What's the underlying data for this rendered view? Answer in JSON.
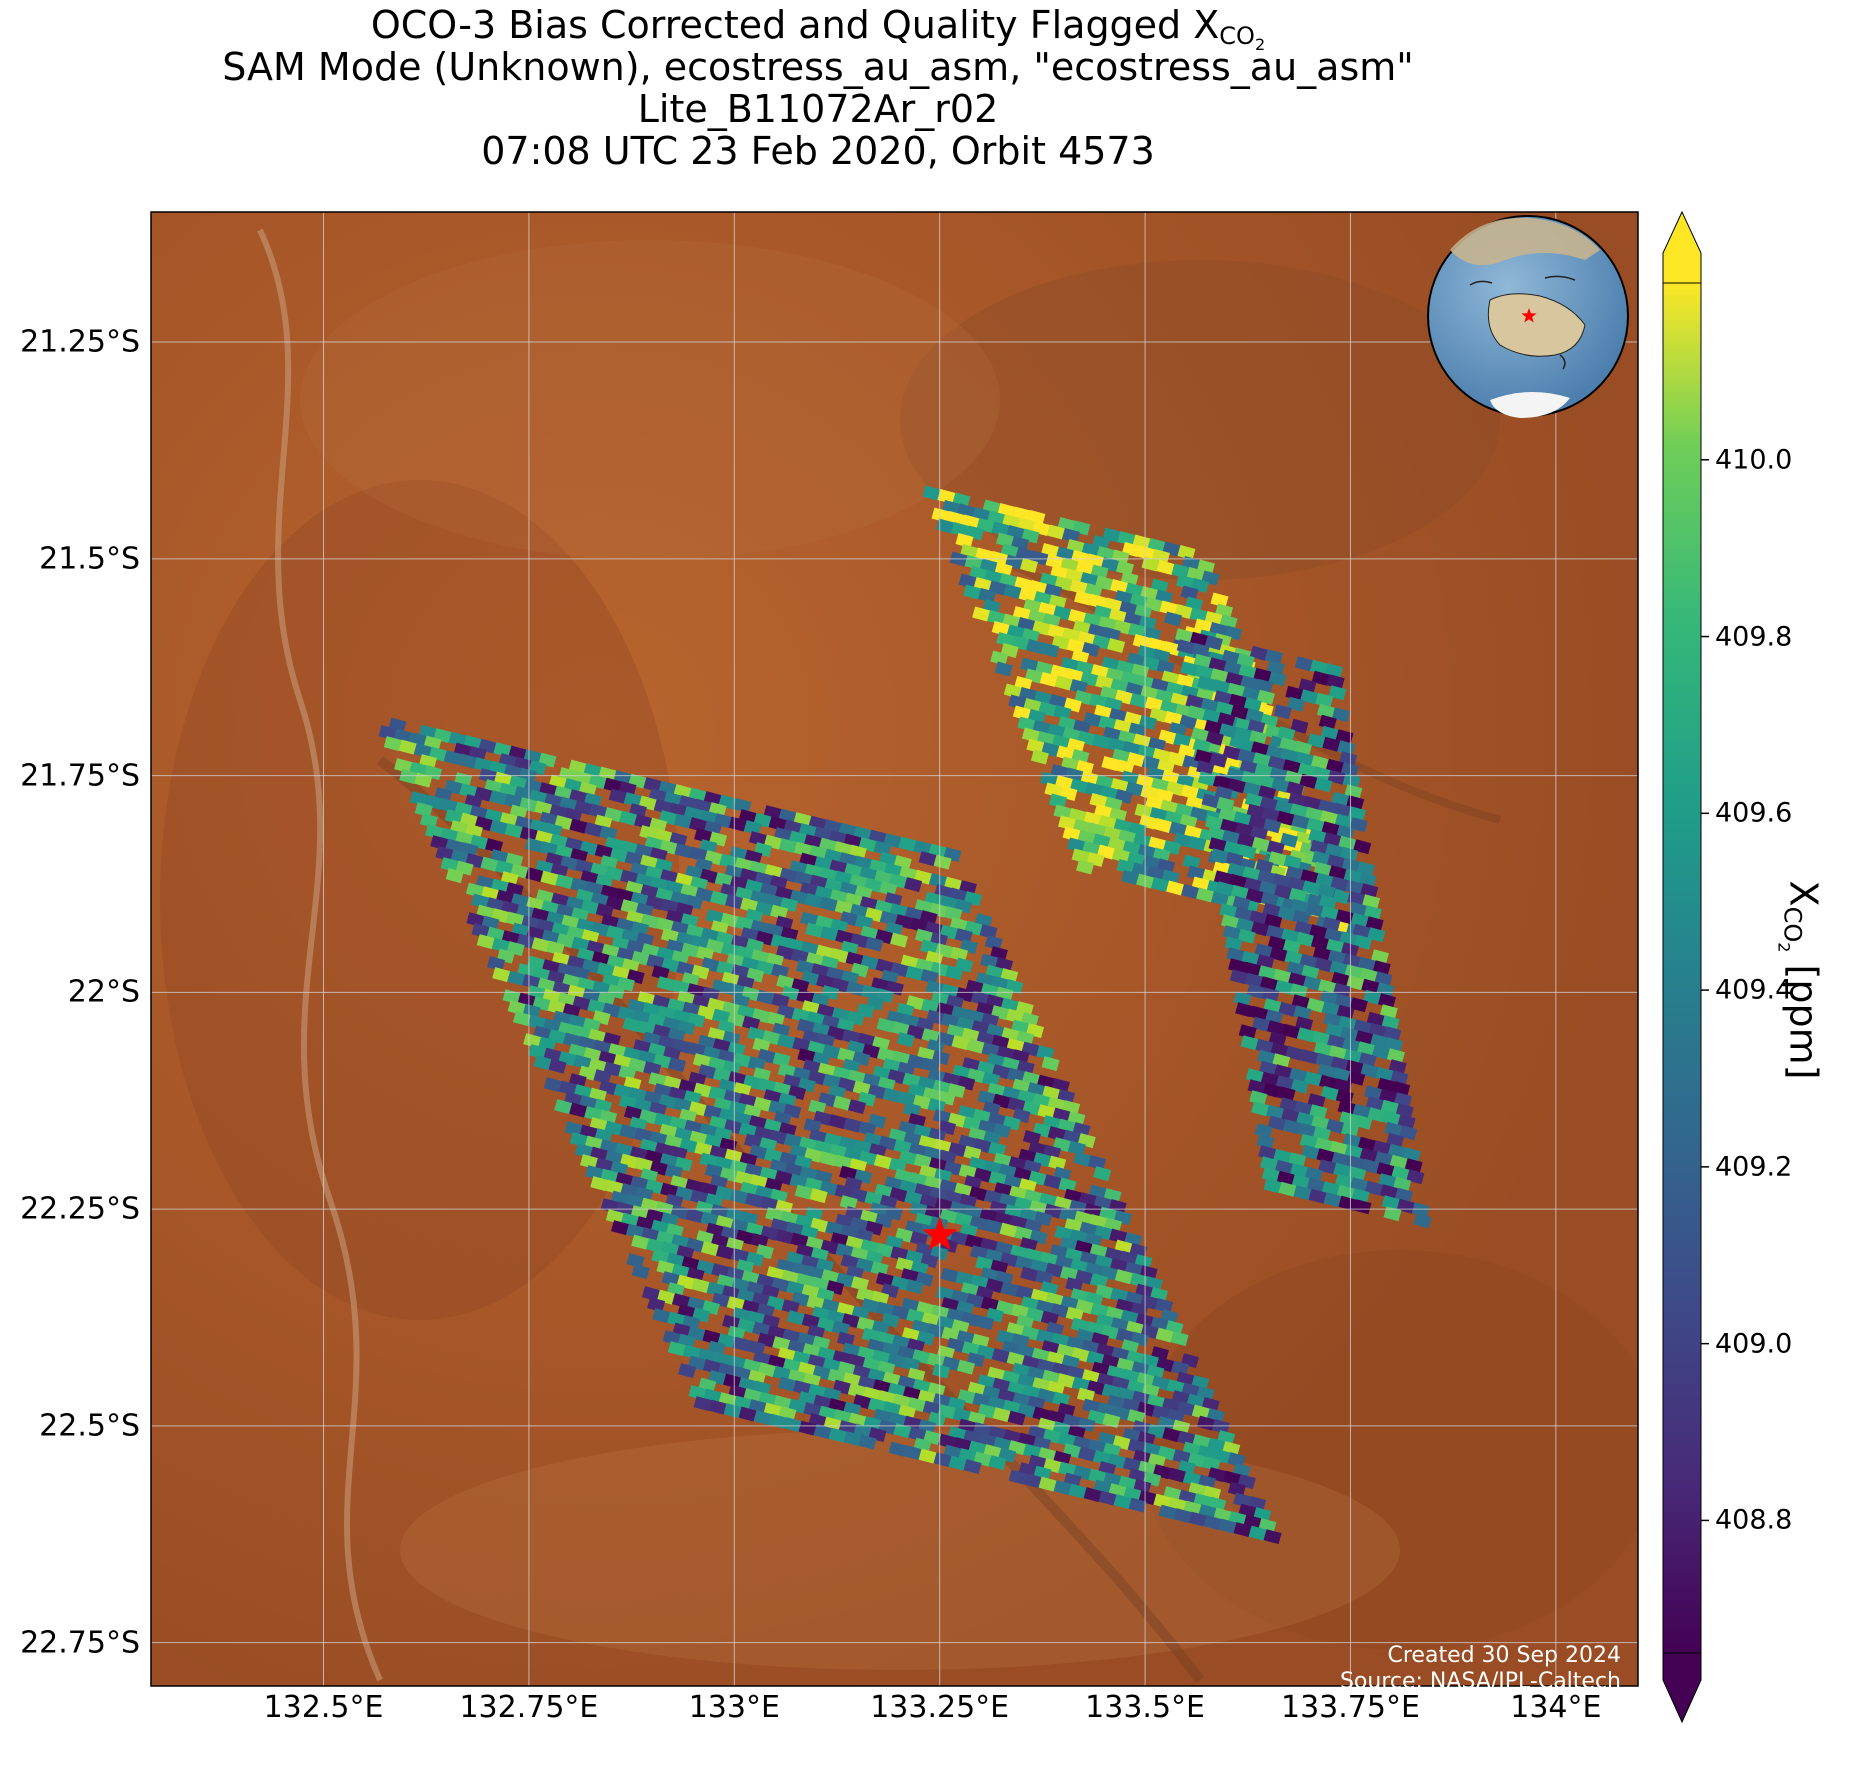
{
  "title": {
    "line1_text": "OCO-3 Bias Corrected and Quality Flagged X",
    "line1_sub": "CO",
    "line1_sub2": "2",
    "line2": "SAM Mode (Unknown), ecostress_au_asm, \"ecostress_au_asm\"",
    "line3": "Lite_B11072Ar_r02",
    "line4": "07:08 UTC 23 Feb 2020, Orbit 4573"
  },
  "credit": {
    "created": "Created 30 Sep 2024",
    "source": "Source: NASA/JPL-Caltech"
  },
  "chart_data": {
    "type": "heatmap",
    "lon_range": [
      132.29,
      134.1
    ],
    "lat_range": [
      -22.8,
      -21.1
    ],
    "x_ticks": [
      "132.5°E",
      "132.75°E",
      "133°E",
      "133.25°E",
      "133.5°E",
      "133.75°E",
      "134°E"
    ],
    "x_tick_values": [
      132.5,
      132.75,
      133.0,
      133.25,
      133.5,
      133.75,
      134.0
    ],
    "y_ticks": [
      "21.25°S",
      "21.5°S",
      "21.75°S",
      "22°S",
      "22.25°S",
      "22.5°S",
      "22.75°S"
    ],
    "y_tick_values": [
      -21.25,
      -21.5,
      -21.75,
      -22.0,
      -22.25,
      -22.5,
      -22.75
    ],
    "grid": true,
    "colorbar": {
      "colormap": "viridis",
      "range": [
        408.65,
        410.2
      ],
      "ticks": [
        "408.8",
        "409.0",
        "409.2",
        "409.4",
        "409.6",
        "409.8",
        "410.0"
      ],
      "tick_values": [
        408.8,
        409.0,
        409.2,
        409.4,
        409.6,
        409.8,
        410.0
      ],
      "label_text": "X",
      "label_sub": "CO",
      "label_sub2": "2",
      "label_unit": "[ppm]",
      "extend": "both"
    },
    "target_marker": {
      "lon": 133.25,
      "lat": -22.28,
      "symbol": "red-star"
    },
    "swath_regions": [
      {
        "lon": [
          132.6,
          133.32
        ],
        "lat": [
          -21.75,
          -22.55
        ],
        "mean_xco2": 409.35
      },
      {
        "lon": [
          133.25,
          133.6
        ],
        "lat": [
          -21.45,
          -21.9
        ],
        "mean_xco2": 409.75
      },
      {
        "lon": [
          133.55,
          133.75
        ],
        "lat": [
          -21.6,
          -22.25
        ],
        "mean_xco2": 409.2
      }
    ],
    "inset": {
      "type": "globe",
      "region": "Australia",
      "marker": "red-star"
    }
  },
  "colors": {
    "land_base": "#a9582a",
    "grid": "#cfcfcf",
    "marker": "#ff0000"
  }
}
